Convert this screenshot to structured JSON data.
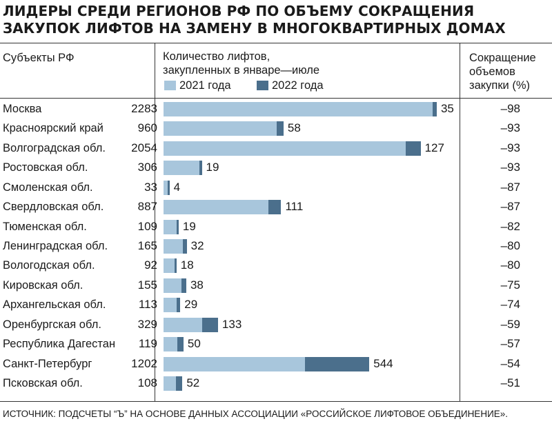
{
  "title_lines": [
    "Лидеры среди регионов РФ по объему сокращения",
    "закупок лифтов на замену в многоквартирных домах"
  ],
  "header": {
    "col_region": "Субъекты РФ",
    "col_bars_line1": "Количество лифтов,",
    "col_bars_line2": "закупленных в январе—июле",
    "col_reduction_line1": "Сокращение",
    "col_reduction_line2": "объемов",
    "col_reduction_line3": "закупки (%)"
  },
  "legend": [
    {
      "label": "2021 года",
      "color": "#a8c6dc"
    },
    {
      "label": "2022 года",
      "color": "#4b6f8c"
    }
  ],
  "colors": {
    "y2021": "#a8c6dc",
    "y2022": "#4b6f8c"
  },
  "source": "ИСТОЧНИК: ПОДСЧЕТЫ “Ъ” НА ОСНОВЕ ДАННЫХ АССОЦИАЦИИ «РОССИЙСКОЕ ЛИФТОВОЕ ОБЪЕДИНЕНИЕ».",
  "chart_data": {
    "type": "bar",
    "orientation": "horizontal",
    "categories": [
      "Москва",
      "Красноярский край",
      "Волгоградская обл.",
      "Ростовская обл.",
      "Смоленская обл.",
      "Свердловская обл.",
      "Тюменская обл.",
      "Ленинградская обл.",
      "Вологодская обл.",
      "Кировская обл.",
      "Архангельская обл.",
      "Оренбургская обл.",
      "Республика Дагестан",
      "Санкт-Петербург",
      "Псковская обл."
    ],
    "series": [
      {
        "name": "2021 года",
        "values": [
          2283,
          960,
          2054,
          306,
          33,
          887,
          109,
          165,
          92,
          155,
          113,
          329,
          119,
          1202,
          108
        ]
      },
      {
        "name": "2022 года",
        "values": [
          35,
          58,
          127,
          19,
          4,
          111,
          19,
          32,
          18,
          38,
          29,
          133,
          50,
          544,
          52
        ]
      }
    ],
    "reduction_labels": [
      "–98",
      "–93",
      "–93",
      "–93",
      "–87",
      "–87",
      "–82",
      "–80",
      "–80",
      "–75",
      "–74",
      "–59",
      "–57",
      "–54",
      "–51"
    ],
    "stacked": true
  }
}
